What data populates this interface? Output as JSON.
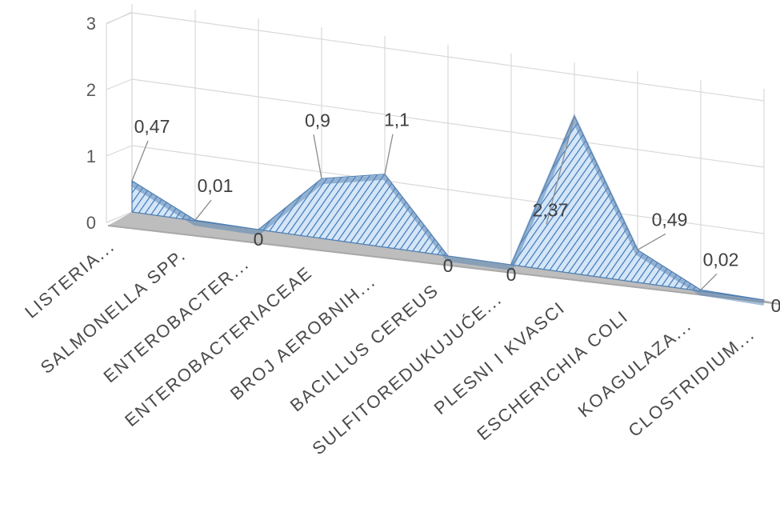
{
  "chart_data": {
    "type": "area",
    "title": "",
    "xlabel": "",
    "ylabel": "",
    "ylim": [
      0,
      3
    ],
    "yticks": [
      "0",
      "1",
      "2",
      "3"
    ],
    "grid": true,
    "legend": "none",
    "categories": [
      "LISTERIA...",
      "SALMONELLA SPP.",
      "ENTEROBACTER...",
      "ENTEROBACTERIACEAE",
      "BROJ AEROBNIH...",
      "BACILLUS CEREUS",
      "SULFITOREDUKUJUĆE...",
      "PLESNI I KVASCI",
      "ESCHERICHIA COLI",
      "KOAGULAZA...",
      "CLOSTRIDIUM..."
    ],
    "series": [
      {
        "values": [
          0.47,
          0.01,
          0,
          0.9,
          1.1,
          0,
          0,
          2.37,
          0.49,
          0.02,
          0
        ],
        "labels": [
          "0,47",
          "0,01",
          "0",
          "0,9",
          "1,1",
          "0",
          "0",
          "2,37",
          "0,49",
          "0,02",
          "0"
        ]
      }
    ],
    "colors": {
      "fill": "#cfe3f6",
      "hatch": "#3f78b8",
      "edge": "#4f7fb3",
      "grid": "#d9d9d9",
      "floor": "#bdbdbd"
    }
  }
}
